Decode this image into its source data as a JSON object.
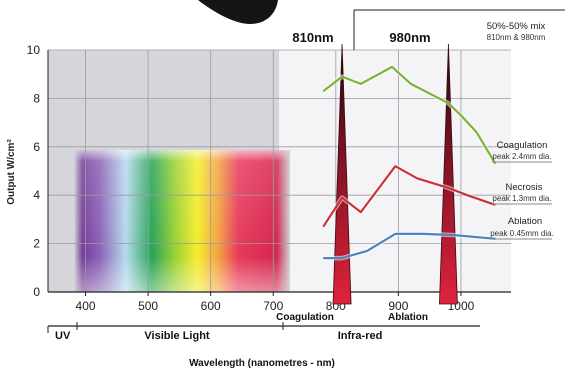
{
  "chart_data": {
    "type": "line",
    "xlabel": "Wavelength (nanometres - nm)",
    "ylabel": "Output W/cm²",
    "xlim": [
      340,
      1080
    ],
    "ylim": [
      0,
      10
    ],
    "x_ticks": [
      400,
      500,
      600,
      700,
      800,
      900,
      1000
    ],
    "y_ticks": [
      0,
      2,
      4,
      6,
      8,
      10
    ],
    "grid": true,
    "series": [
      {
        "name": "Coagulation",
        "color": "#7fb23a",
        "points": [
          [
            780,
            8.3
          ],
          [
            800,
            8.7
          ],
          [
            810,
            8.9
          ],
          [
            840,
            8.6
          ],
          [
            890,
            9.3
          ],
          [
            920,
            8.6
          ],
          [
            980,
            7.8
          ],
          [
            1000,
            7.3
          ],
          [
            1025,
            6.6
          ],
          [
            1055,
            5.3
          ]
        ]
      },
      {
        "name": "Necrosis",
        "color": "#c8343a",
        "points": [
          [
            780,
            2.7
          ],
          [
            810,
            3.9
          ],
          [
            840,
            3.3
          ],
          [
            895,
            5.2
          ],
          [
            930,
            4.7
          ],
          [
            980,
            4.3
          ],
          [
            1010,
            4.0
          ],
          [
            1055,
            3.6
          ]
        ]
      },
      {
        "name": "Ablation",
        "color": "#4f82c0",
        "points": [
          [
            780,
            1.4
          ],
          [
            810,
            1.4
          ],
          [
            850,
            1.7
          ],
          [
            895,
            2.4
          ],
          [
            940,
            2.4
          ],
          [
            990,
            2.35
          ],
          [
            1055,
            2.2
          ]
        ]
      }
    ],
    "peaks": [
      {
        "label": "810nm",
        "x": 810,
        "sublabel": "Coagulation"
      },
      {
        "label": "980nm",
        "x": 980,
        "sublabel": "Ablation"
      }
    ],
    "mix_label_line1": "50%-50% mix",
    "mix_label_line2": "810nm & 980nm",
    "annotations": [
      {
        "title": "Coagulation",
        "sub": "peak 2.4mm dia."
      },
      {
        "title": "Necrosis",
        "sub": "peak 1.3mm dia."
      },
      {
        "title": "Ablation",
        "sub": "peak 0.45mm dia."
      }
    ],
    "bands": [
      {
        "label": "UV"
      },
      {
        "label": "Visible Light"
      },
      {
        "label": "Infra-red"
      }
    ]
  }
}
